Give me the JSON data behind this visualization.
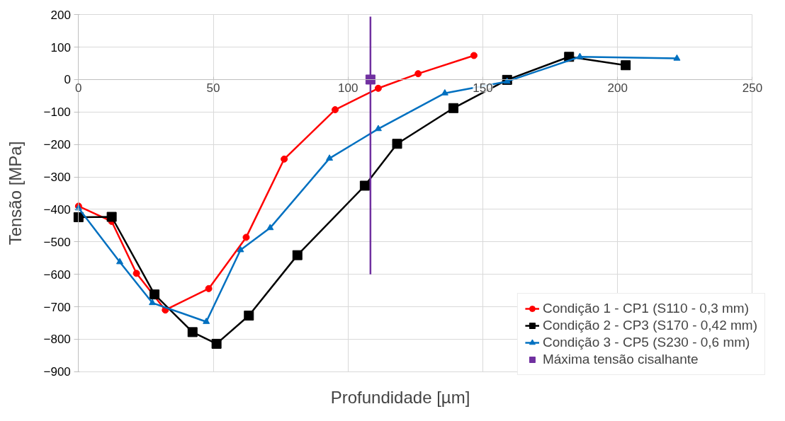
{
  "chart_data": {
    "type": "line",
    "xlabel": "Profundidade [µm]",
    "ylabel": "Tensão [MPa]",
    "xlim": [
      0,
      250
    ],
    "ylim": [
      -900,
      200
    ],
    "xticks": [
      0,
      50,
      100,
      150,
      200,
      250
    ],
    "yticks": [
      -900,
      -800,
      -700,
      -600,
      -500,
      -400,
      -300,
      -200,
      -100,
      0,
      100,
      200
    ],
    "grid": true,
    "legend": "bottom right",
    "line_style": "solid",
    "series": [
      {
        "name": "Condição 1 - CP1 (S110 - 0,3 mm)",
        "color": "#ff0000",
        "marker": "circle",
        "x": [
          0,
          12.3,
          21.5,
          32.2,
          48.3,
          62.2,
          76.3,
          95.2,
          111.2,
          126,
          146.7
        ],
        "values": [
          -390,
          -437,
          -597,
          -710,
          -644,
          -486,
          -245,
          -93,
          -27,
          18,
          74
        ]
      },
      {
        "name": "Condição 2 - CP3 (S170 - 0,42 mm)",
        "color": "#000000",
        "marker": "square",
        "x": [
          0,
          12.3,
          28.2,
          42.3,
          51.2,
          63.2,
          81.2,
          106.2,
          118.2,
          139.1,
          159,
          182,
          203
        ],
        "values": [
          -424,
          -423,
          -662,
          -778,
          -814,
          -727,
          -541,
          -327,
          -198,
          -88,
          -1,
          70,
          44
        ]
      },
      {
        "name": "Condição 3 - CP5 (S230 - 0,6 mm)",
        "color": "#0070c0",
        "marker": "triangle",
        "x": [
          0,
          15.3,
          27.4,
          47.4,
          60.1,
          71.1,
          93.1,
          111.2,
          135.9,
          159,
          186,
          222
        ],
        "values": [
          -396,
          -562,
          -688,
          -746,
          -525,
          -457,
          -243,
          -152,
          -42,
          -6,
          70,
          65
        ]
      },
      {
        "name": "Máxima tensão cisalhante",
        "type": "scatter",
        "color": "#7030a0",
        "marker": "square",
        "x": [
          108.3
        ],
        "values": [
          0
        ]
      },
      {
        "type": "line",
        "color": "#7030a0",
        "marker": "none",
        "x": [
          108.3,
          108.3
        ],
        "values": [
          -600,
          194
        ]
      }
    ]
  }
}
